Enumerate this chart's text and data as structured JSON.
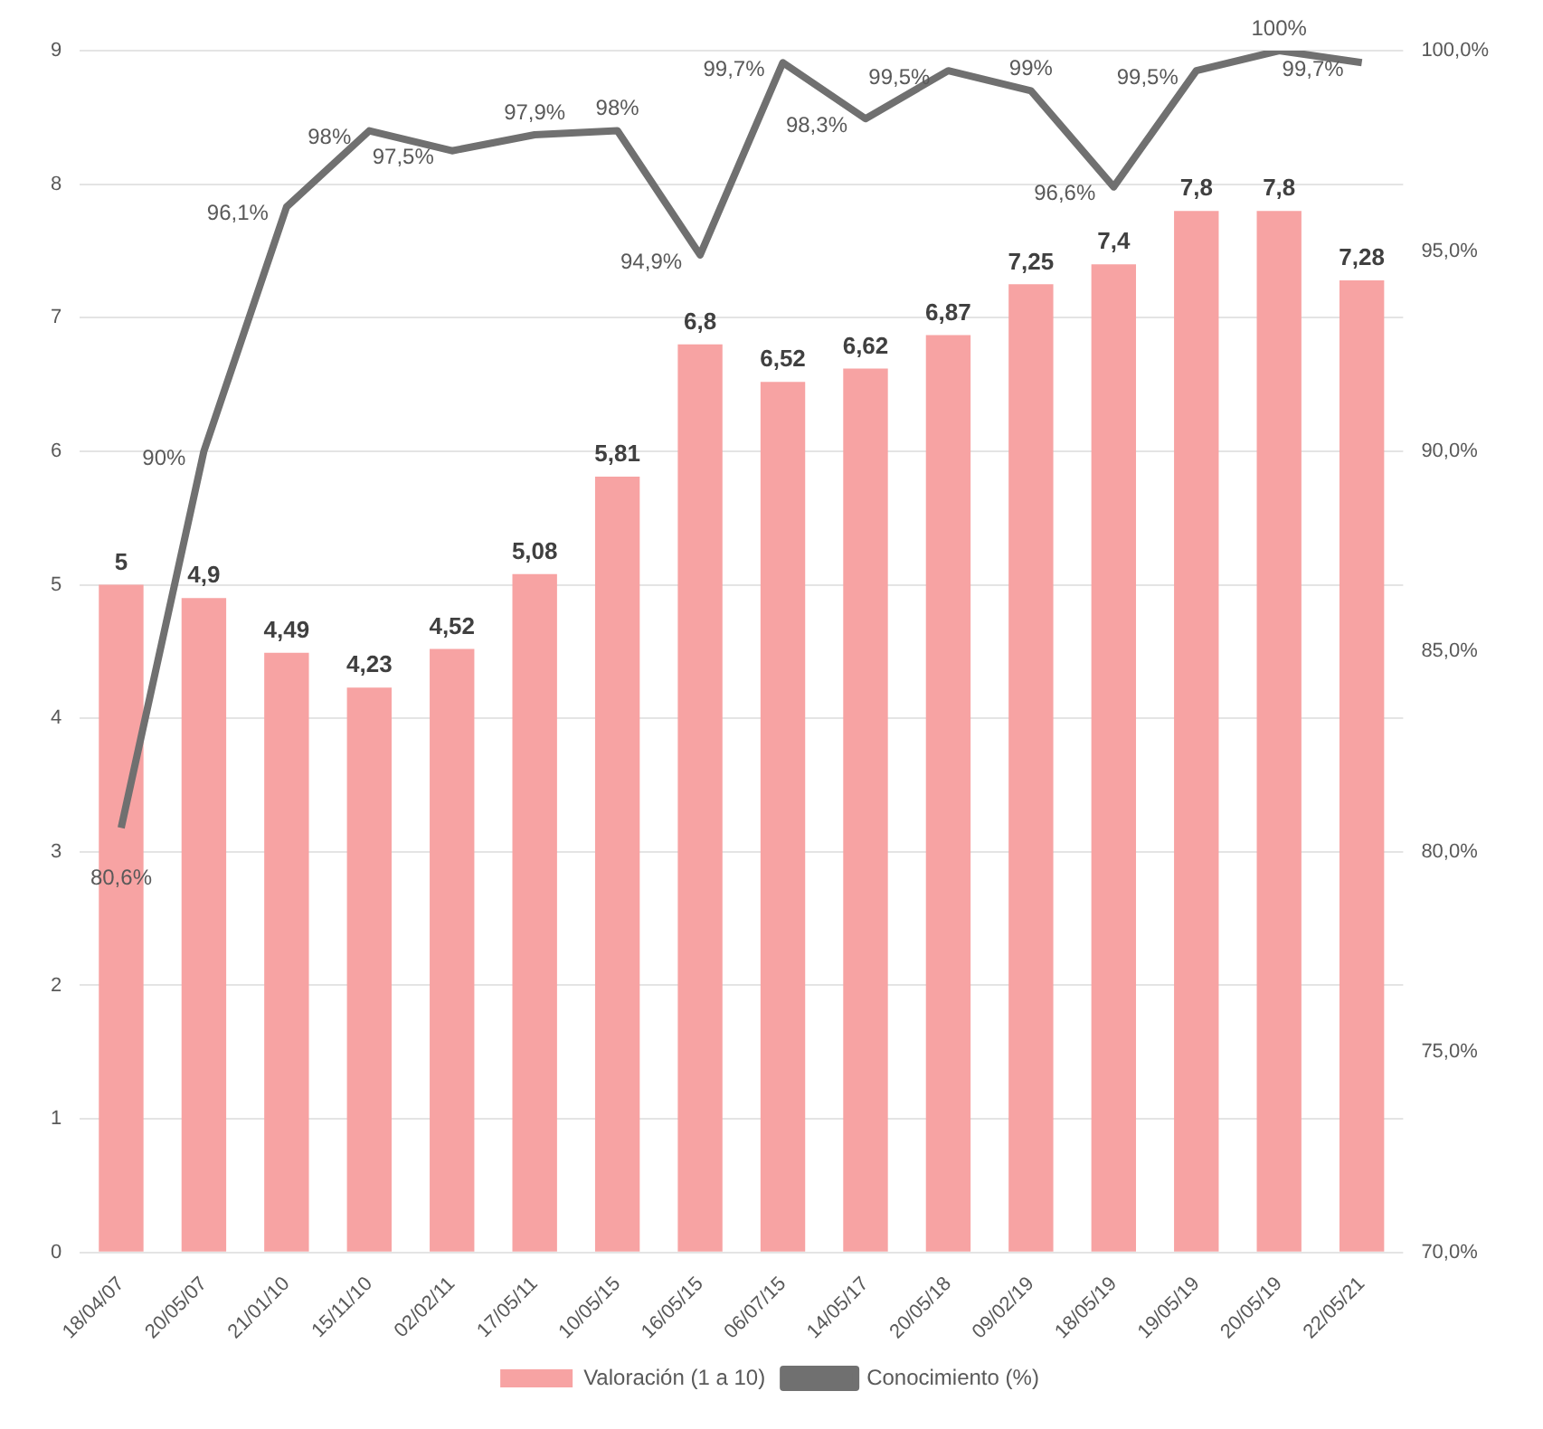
{
  "chart_data": {
    "type": "bar",
    "categories": [
      "18/04/07",
      "20/05/07",
      "21/01/10",
      "15/11/10",
      "02/02/11",
      "17/05/11",
      "10/05/15",
      "16/05/15",
      "06/07/15",
      "14/05/17",
      "20/05/18",
      "09/02/19",
      "18/05/19",
      "19/05/19",
      "20/05/19",
      "22/05/21"
    ],
    "series": [
      {
        "name": "Valoración (1 a 10)",
        "color": "#f7a3a3",
        "values": [
          5,
          4.9,
          4.49,
          4.23,
          4.52,
          5.08,
          5.81,
          6.8,
          6.52,
          6.62,
          6.87,
          7.25,
          7.4,
          7.8,
          7.8,
          7.28
        ],
        "value_labels": [
          "5",
          "4,9",
          "4,49",
          "4,23",
          "4,52",
          "5,08",
          "5,81",
          "6,8",
          "6,52",
          "6,62",
          "6,87",
          "7,25",
          "7,4",
          "7,8",
          "7,8",
          "7,28"
        ]
      },
      {
        "name": "Conocimiento (%)",
        "type": "line",
        "axis": "y2",
        "color": "#707070",
        "values": [
          80.6,
          90,
          96.1,
          98,
          97.5,
          97.9,
          98,
          94.9,
          99.7,
          98.3,
          99.5,
          99,
          96.6,
          99.5,
          100,
          99.7
        ],
        "value_labels": [
          "80,6%",
          "90%",
          "96,1%",
          "98%",
          "97,5%",
          "97,9%",
          "98%",
          "94,9%",
          "99,7%",
          "98,3%",
          "99,5%",
          "99%",
          "96,6%",
          "99,5%",
          "100%",
          "99,7%"
        ]
      }
    ],
    "ylim": [
      0,
      9
    ],
    "yticks": [
      0,
      1,
      2,
      3,
      4,
      5,
      6,
      7,
      8,
      9
    ],
    "y2lim": [
      70,
      100
    ],
    "y2ticks": [
      {
        "value": 70,
        "label": "70,0%"
      },
      {
        "value": 75,
        "label": "75,0%"
      },
      {
        "value": 80,
        "label": "80,0%"
      },
      {
        "value": 85,
        "label": "85,0%"
      },
      {
        "value": 90,
        "label": "90,0%"
      },
      {
        "value": 95,
        "label": "95,0%"
      },
      {
        "value": 100,
        "label": "100,0%"
      }
    ],
    "grid": "y",
    "legend": "bottom",
    "marker": "none",
    "line_style": "solid"
  }
}
